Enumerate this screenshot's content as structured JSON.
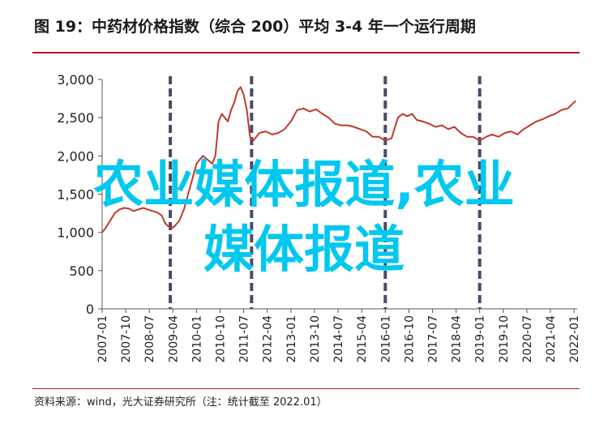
{
  "title": "图 19：中药材价格指数（综合 200）平均 3-4 年一个运行周期",
  "source": "资料来源：wind，光大证券研究所（注：统计截至 2022.01）",
  "watermark": {
    "line1": "农业媒体报道,农业",
    "line2": "媒体报道"
  },
  "colors": {
    "line": "#c0392b",
    "cycle_marker": "#4a4a6a",
    "title_rule": "#b01c24",
    "watermark": "#00c8f0"
  },
  "chart_data": {
    "type": "line",
    "title": "",
    "xlabel": "",
    "ylabel": "",
    "ylim": [
      0,
      3000
    ],
    "yticks": [
      0,
      500,
      1000,
      1500,
      2000,
      2500,
      3000
    ],
    "ytick_labels": [
      "0",
      "500",
      "1,000",
      "1,500",
      "2,000",
      "2,500",
      "3,000"
    ],
    "xlim": [
      2007.0,
      2022.1
    ],
    "xticks": [
      "2007-01",
      "2007-10",
      "2008-07",
      "2009-04",
      "2010-01",
      "2010-10",
      "2011-07",
      "2012-04",
      "2013-01",
      "2013-10",
      "2014-07",
      "2015-04",
      "2016-01",
      "2016-10",
      "2017-07",
      "2018-04",
      "2019-01",
      "2019-10",
      "2020-07",
      "2021-04",
      "2022-01"
    ],
    "cycle_markers": [
      "2009-03",
      "2011-10",
      "2016-01",
      "2019-01"
    ],
    "grid": false,
    "series": [
      {
        "x": [
          2007.0,
          2007.1,
          2007.25,
          2007.4,
          2007.55,
          2007.7,
          2007.85,
          2008.0,
          2008.15,
          2008.3,
          2008.45,
          2008.6,
          2008.75,
          2008.9,
          2009.0,
          2009.1,
          2009.2,
          2009.3,
          2009.45,
          2009.6,
          2009.8,
          2010.0,
          2010.1,
          2010.2,
          2010.35,
          2010.5,
          2010.6,
          2010.7,
          2010.8,
          2010.9,
          2011.0,
          2011.1,
          2011.2,
          2011.3,
          2011.4,
          2011.5,
          2011.6,
          2011.7,
          2011.8,
          2011.9,
          2012.0,
          2012.2,
          2012.4,
          2012.6,
          2012.8,
          2013.0,
          2013.2,
          2013.4,
          2013.6,
          2013.8,
          2014.0,
          2014.2,
          2014.4,
          2014.6,
          2014.8,
          2015.0,
          2015.2,
          2015.4,
          2015.6,
          2015.8,
          2016.0,
          2016.2,
          2016.4,
          2016.55,
          2016.7,
          2016.85,
          2017.0,
          2017.2,
          2017.4,
          2017.6,
          2017.8,
          2018.0,
          2018.2,
          2018.4,
          2018.6,
          2018.8,
          2019.0,
          2019.2,
          2019.4,
          2019.6,
          2019.8,
          2020.0,
          2020.2,
          2020.4,
          2020.6,
          2020.8,
          2021.0,
          2021.2,
          2021.4,
          2021.6,
          2021.8,
          2022.0,
          2022.05
        ],
        "values": [
          1000,
          1050,
          1150,
          1250,
          1300,
          1320,
          1310,
          1280,
          1300,
          1320,
          1300,
          1280,
          1260,
          1220,
          1120,
          1080,
          1050,
          1080,
          1150,
          1300,
          1600,
          1900,
          1950,
          2000,
          1950,
          1900,
          2000,
          2450,
          2550,
          2500,
          2450,
          2600,
          2700,
          2850,
          2900,
          2800,
          2600,
          2250,
          2200,
          2250,
          2300,
          2320,
          2280,
          2300,
          2350,
          2450,
          2600,
          2620,
          2580,
          2610,
          2550,
          2500,
          2420,
          2400,
          2400,
          2380,
          2350,
          2320,
          2250,
          2250,
          2200,
          2230,
          2500,
          2550,
          2520,
          2550,
          2470,
          2450,
          2420,
          2380,
          2400,
          2350,
          2380,
          2300,
          2250,
          2250,
          2200,
          2250,
          2280,
          2250,
          2300,
          2320,
          2280,
          2350,
          2400,
          2450,
          2480,
          2520,
          2550,
          2600,
          2620,
          2700,
          2720
        ]
      }
    ]
  }
}
